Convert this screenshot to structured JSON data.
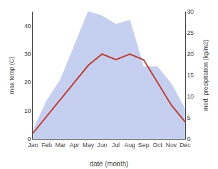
{
  "chart_data": {
    "type": "line",
    "xlabel": "date (month)",
    "ylabel": "max temp (C)",
    "y2label": "med. precipitation (kg/m2)",
    "categories": [
      "Jan",
      "Feb",
      "Mar",
      "Apr",
      "May",
      "Jun",
      "Jul",
      "Aug",
      "Sep",
      "Oct",
      "Nov",
      "Dec"
    ],
    "series": [
      {
        "type": "area",
        "axis": "y2",
        "color": "#c5cff0",
        "values": [
          2,
          9,
          14,
          22,
          30,
          29,
          27,
          28,
          17,
          17,
          13,
          7
        ]
      },
      {
        "type": "line",
        "color": "#c0392b",
        "values": [
          2,
          8,
          14,
          20,
          26,
          30,
          28,
          30,
          28,
          20,
          12,
          6
        ]
      }
    ],
    "ylim": [
      0,
      45
    ],
    "yticks": [
      0,
      10,
      20,
      30,
      40
    ],
    "y2lim": [
      0,
      30
    ],
    "y2ticks": [
      0,
      5,
      10,
      15,
      20,
      25,
      30
    ],
    "grid": false
  }
}
